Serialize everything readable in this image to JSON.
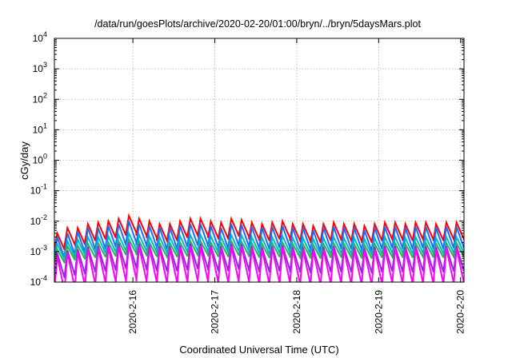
{
  "chart_data": {
    "type": "line",
    "title": "/data/run/goesPlots/archive/2020-02-20/01:00/bryn/../bryn/5daysMars.plot",
    "xlabel": "Coordinated Universal Time (UTC)",
    "ylabel": "cGy/day",
    "y_scale": "log",
    "ylim": [
      0.0001,
      10000
    ],
    "xlim": [
      "2020-02-15T01:00",
      "2020-02-20T01:00"
    ],
    "grid": true,
    "legend": "none",
    "x_ticks": [
      "2020-2-16",
      "2020-2-17",
      "2020-2-18",
      "2020-2-19",
      "2020-2-20"
    ],
    "y_ticks": [
      {
        "value": 0.0001,
        "base": "10",
        "exp": "-4"
      },
      {
        "value": 0.001,
        "base": "10",
        "exp": "-3"
      },
      {
        "value": 0.01,
        "base": "10",
        "exp": "-2"
      },
      {
        "value": 0.1,
        "base": "10",
        "exp": "-1"
      },
      {
        "value": 1,
        "base": "10",
        "exp": "0"
      },
      {
        "value": 10,
        "base": "10",
        "exp": "1"
      },
      {
        "value": 100,
        "base": "10",
        "exp": "2"
      },
      {
        "value": 1000,
        "base": "10",
        "exp": "3"
      },
      {
        "value": 10000,
        "base": "10",
        "exp": "4"
      }
    ],
    "sawtooth_period_hours": 3,
    "series": [
      {
        "color": "#ff0000",
        "peaks": [
          0.004,
          0.006,
          0.006,
          0.008,
          0.009,
          0.01,
          0.012,
          0.015,
          0.012,
          0.01,
          0.008,
          0.008,
          0.01,
          0.012,
          0.012,
          0.01,
          0.009,
          0.012,
          0.011,
          0.009,
          0.008,
          0.009,
          0.01,
          0.008,
          0.008,
          0.007,
          0.008,
          0.009,
          0.008,
          0.008,
          0.007,
          0.008,
          0.009,
          0.009,
          0.008,
          0.009,
          0.009,
          0.008,
          0.009,
          0.009,
          0.009
        ],
        "trough_ratio": 0.28
      },
      {
        "color": "#1a6cff",
        "peaks": [
          0.003,
          0.004,
          0.0045,
          0.006,
          0.006,
          0.007,
          0.008,
          0.01,
          0.008,
          0.007,
          0.006,
          0.006,
          0.007,
          0.008,
          0.008,
          0.007,
          0.006,
          0.008,
          0.0075,
          0.0065,
          0.006,
          0.0065,
          0.007,
          0.006,
          0.006,
          0.005,
          0.006,
          0.0065,
          0.006,
          0.006,
          0.005,
          0.006,
          0.0065,
          0.0065,
          0.006,
          0.0065,
          0.0065,
          0.006,
          0.0065,
          0.0065,
          0.0065
        ],
        "trough_ratio": 0.2
      },
      {
        "color": "#00b8d0",
        "peaks": [
          0.0018,
          0.0022,
          0.0025,
          0.003,
          0.003,
          0.0032,
          0.0035,
          0.004,
          0.0035,
          0.0032,
          0.003,
          0.003,
          0.0032,
          0.0035,
          0.0035,
          0.0032,
          0.003,
          0.0035,
          0.0034,
          0.003,
          0.0028,
          0.003,
          0.0032,
          0.0028,
          0.0028,
          0.0026,
          0.0028,
          0.003,
          0.0028,
          0.0028,
          0.0026,
          0.0028,
          0.003,
          0.003,
          0.0028,
          0.003,
          0.003,
          0.0028,
          0.003,
          0.003,
          0.003
        ],
        "trough_ratio": 0.3
      },
      {
        "color": "#2cb060",
        "peaks": [
          0.0012,
          0.0015,
          0.0016,
          0.0018,
          0.0019,
          0.002,
          0.0022,
          0.0025,
          0.0022,
          0.002,
          0.0019,
          0.0019,
          0.002,
          0.0022,
          0.0022,
          0.002,
          0.0019,
          0.0022,
          0.0021,
          0.0019,
          0.0018,
          0.0019,
          0.002,
          0.0018,
          0.0018,
          0.0017,
          0.0018,
          0.0019,
          0.0018,
          0.0018,
          0.0017,
          0.0018,
          0.0019,
          0.0019,
          0.0018,
          0.0019,
          0.0019,
          0.0018,
          0.0019,
          0.0019,
          0.0019
        ],
        "trough_ratio": 0.35
      },
      {
        "color": "#8a2be2",
        "peaks": [
          0.0009,
          0.0011,
          0.0012,
          0.0014,
          0.0015,
          0.0016,
          0.0018,
          0.002,
          0.0018,
          0.0016,
          0.0015,
          0.0015,
          0.0016,
          0.0018,
          0.0018,
          0.0016,
          0.0015,
          0.0018,
          0.0017,
          0.0015,
          0.0014,
          0.0015,
          0.0016,
          0.0014,
          0.0014,
          0.0013,
          0.0014,
          0.0015,
          0.0014,
          0.0014,
          0.0013,
          0.0014,
          0.0015,
          0.0015,
          0.0014,
          0.0015,
          0.0015,
          0.0014,
          0.0015,
          0.0015,
          0.0015
        ],
        "trough_ratio": 0.15
      },
      {
        "color": "#ff00ff",
        "peaks": [
          0.0007,
          0.0009,
          0.001,
          0.0012,
          0.0013,
          0.0014,
          0.0015,
          0.0018,
          0.0015,
          0.0014,
          0.0013,
          0.0013,
          0.0014,
          0.0015,
          0.0015,
          0.0014,
          0.0013,
          0.0015,
          0.0015,
          0.0013,
          0.0012,
          0.0013,
          0.0014,
          0.0012,
          0.0012,
          0.0011,
          0.0012,
          0.0013,
          0.0012,
          0.0012,
          0.0011,
          0.0012,
          0.0013,
          0.0013,
          0.0012,
          0.0013,
          0.0013,
          0.0012,
          0.0013,
          0.0013,
          0.0013
        ],
        "trough_ratio": 0.07
      }
    ]
  }
}
